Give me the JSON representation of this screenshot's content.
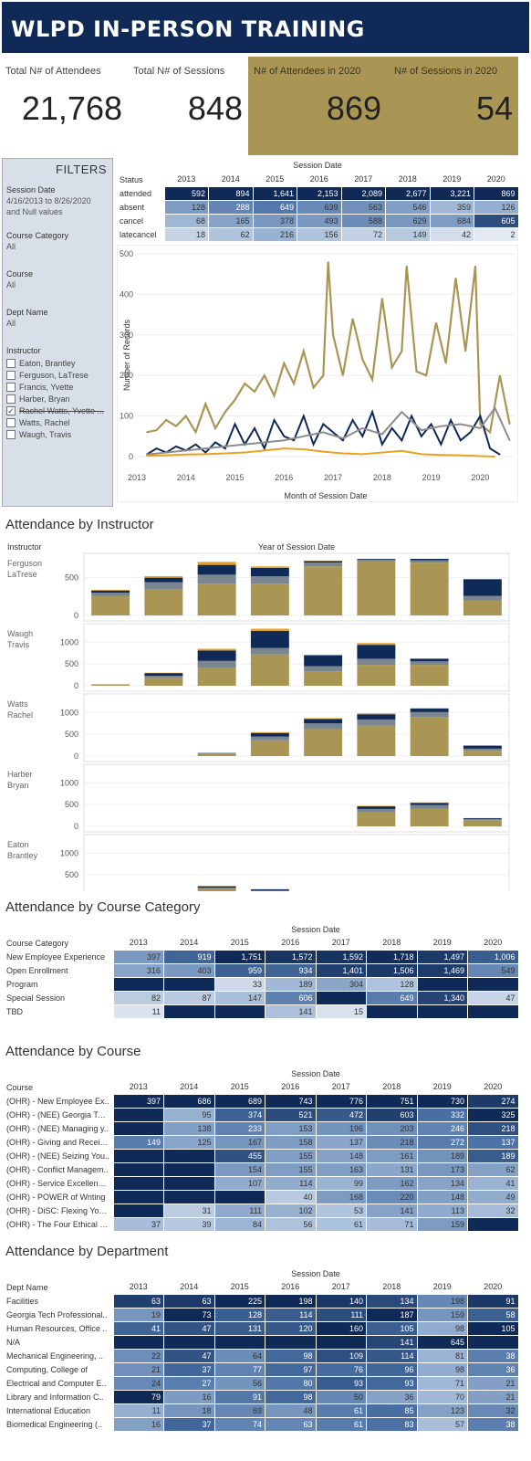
{
  "title": "WLPD IN-PERSON TRAINING",
  "kpis": {
    "total_attendees_label": "Total N# of Attendees",
    "total_attendees": "21,768",
    "total_sessions_label": "Total N# of Sessions",
    "total_sessions": "848",
    "attendees_2020_label": "N# of Attendees in 2020",
    "attendees_2020": "869",
    "sessions_2020_label": "N# of Sessions in 2020",
    "sessions_2020": "54"
  },
  "filters": {
    "title": "FILTERS",
    "session_date_label": "Session Date",
    "session_date_value": "4/16/2013 to 8/26/2020",
    "session_date_null": "and Null values",
    "course_category_label": "Course Category",
    "course_category_value": "All",
    "course_label": "Course",
    "course_value": "All",
    "dept_label": "Dept Name",
    "dept_value": "All",
    "instructor_label": "Instructor",
    "instructors": [
      {
        "name": "Eaton, Brantley",
        "checked": false
      },
      {
        "name": "Ferguson, LaTrese",
        "checked": false
      },
      {
        "name": "Francis, Yvette",
        "checked": false
      },
      {
        "name": "Harber, Bryan",
        "checked": false
      },
      {
        "name": "Rachel Watts, Yvette ...",
        "checked": true
      },
      {
        "name": "Watts, Rachel",
        "checked": false
      },
      {
        "name": "Waugh, Travis",
        "checked": false
      }
    ]
  },
  "colors": {
    "navy": "#0f2a56",
    "gold": "#aa9654",
    "grey": "#8c8c8c",
    "orange": "#e8a21c",
    "teal_grey": "#7a8592"
  },
  "status_table": {
    "header": "Session Date",
    "row_header": "Status",
    "years": [
      "2013",
      "2014",
      "2015",
      "2016",
      "2017",
      "2018",
      "2019",
      "2020"
    ],
    "rows": [
      {
        "label": "attended",
        "values": [
          "592",
          "894",
          "1,641",
          "2,153",
          "2,089",
          "2,677",
          "3,221",
          "869"
        ]
      },
      {
        "label": "absent",
        "values": [
          "128",
          "288",
          "649",
          "639",
          "563",
          "546",
          "359",
          "126"
        ]
      },
      {
        "label": "cancel",
        "values": [
          "68",
          "165",
          "378",
          "493",
          "588",
          "629",
          "684",
          "605"
        ]
      },
      {
        "label": "latecancel",
        "values": [
          "18",
          "62",
          "216",
          "156",
          "72",
          "149",
          "42",
          "2"
        ]
      }
    ]
  },
  "chart_data": [
    {
      "type": "line",
      "xlabel": "Month of Session Date",
      "ylabel": "Number of Records",
      "ylim": [
        0,
        500
      ],
      "yticks": [
        "0",
        "100",
        "200",
        "300",
        "400",
        "500"
      ],
      "xticks": [
        "2013",
        "2014",
        "2015",
        "2016",
        "2017",
        "2018",
        "2019",
        "2020"
      ],
      "x_range": [
        2013.0,
        2020.7
      ],
      "series": [
        {
          "color": "#aa9654",
          "x": [
            2013.2,
            2013.4,
            2013.6,
            2013.8,
            2014.0,
            2014.2,
            2014.4,
            2014.6,
            2014.8,
            2015.0,
            2015.2,
            2015.4,
            2015.6,
            2015.8,
            2016.0,
            2016.2,
            2016.4,
            2016.6,
            2016.8,
            2016.9,
            2017.0,
            2017.2,
            2017.4,
            2017.6,
            2017.8,
            2018.0,
            2018.2,
            2018.4,
            2018.5,
            2018.7,
            2018.9,
            2019.1,
            2019.3,
            2019.5,
            2019.7,
            2019.9,
            2020.0,
            2020.2,
            2020.4,
            2020.6
          ],
          "y": [
            60,
            65,
            90,
            75,
            100,
            60,
            130,
            70,
            110,
            140,
            180,
            160,
            200,
            150,
            230,
            180,
            260,
            170,
            200,
            480,
            300,
            200,
            340,
            240,
            190,
            390,
            220,
            260,
            470,
            210,
            200,
            330,
            230,
            440,
            260,
            470,
            80,
            60,
            200,
            80
          ]
        },
        {
          "color": "#0f2a56",
          "x": [
            2013.2,
            2013.4,
            2013.6,
            2013.8,
            2014.0,
            2014.2,
            2014.4,
            2014.6,
            2014.8,
            2015.0,
            2015.2,
            2015.4,
            2015.6,
            2015.8,
            2016.0,
            2016.2,
            2016.4,
            2016.6,
            2016.8,
            2017.0,
            2017.2,
            2017.4,
            2017.6,
            2017.8,
            2018.0,
            2018.2,
            2018.4,
            2018.6,
            2018.8,
            2019.0,
            2019.2,
            2019.4,
            2019.6,
            2019.8,
            2020.0,
            2020.2,
            2020.4
          ],
          "y": [
            5,
            20,
            10,
            25,
            15,
            30,
            10,
            35,
            20,
            80,
            30,
            70,
            20,
            90,
            50,
            40,
            100,
            30,
            80,
            60,
            40,
            90,
            50,
            110,
            30,
            70,
            40,
            100,
            50,
            80,
            30,
            90,
            40,
            60,
            100,
            20,
            5
          ]
        },
        {
          "color": "#8c8c8c",
          "x": [
            2013.2,
            2013.6,
            2014.0,
            2014.4,
            2014.8,
            2015.2,
            2015.6,
            2016.0,
            2016.4,
            2016.8,
            2017.2,
            2017.6,
            2018.0,
            2018.4,
            2018.8,
            2019.2,
            2019.6,
            2020.0,
            2020.3,
            2020.6
          ],
          "y": [
            5,
            10,
            15,
            20,
            25,
            30,
            35,
            40,
            50,
            60,
            45,
            70,
            55,
            110,
            65,
            75,
            80,
            70,
            120,
            40
          ]
        },
        {
          "color": "#e8a21c",
          "x": [
            2013.2,
            2013.6,
            2014.0,
            2014.4,
            2014.8,
            2015.2,
            2015.6,
            2016.0,
            2016.4,
            2016.8,
            2017.2,
            2017.6,
            2018.0,
            2018.4,
            2018.8,
            2019.2,
            2019.6,
            2020.0,
            2020.3
          ],
          "y": [
            2,
            3,
            5,
            6,
            8,
            10,
            15,
            20,
            18,
            12,
            8,
            6,
            10,
            14,
            6,
            4,
            3,
            1,
            0
          ]
        }
      ]
    },
    {
      "type": "bar",
      "title": "Attendance by Instructor",
      "row_header": "Instructor",
      "col_header": "Year of Session Date",
      "categories": [
        "2013",
        "2014",
        "2015",
        "2016",
        "2017",
        "2018",
        "2019",
        "2020"
      ],
      "panels": [
        {
          "name": "Ferguson LaTrese",
          "ymax": 750,
          "yticks": [
            "0",
            "500"
          ],
          "stacks": [
            [
              260,
              40,
              30,
              10
            ],
            [
              350,
              90,
              60,
              20
            ],
            [
              420,
              120,
              130,
              40
            ],
            [
              420,
              100,
              110,
              20
            ],
            [
              650,
              50,
              20,
              5
            ],
            [
              720,
              20,
              10,
              0
            ],
            [
              700,
              30,
              20,
              0
            ],
            [
              200,
              60,
              220,
              0
            ]
          ]
        },
        {
          "name": "Waugh Travis",
          "ymax": 1300,
          "yticks": [
            "0",
            "500",
            "1000"
          ],
          "stacks": [
            [
              20,
              5,
              5,
              0
            ],
            [
              180,
              50,
              60,
              10
            ],
            [
              420,
              150,
              240,
              40
            ],
            [
              720,
              150,
              390,
              50
            ],
            [
              330,
              120,
              250,
              10
            ],
            [
              480,
              140,
              320,
              40
            ],
            [
              480,
              80,
              60,
              5
            ],
            [
              0,
              0,
              0,
              0
            ]
          ]
        },
        {
          "name": "Watts Rachel",
          "ymax": 1300,
          "yticks": [
            "0",
            "500",
            "1000"
          ],
          "stacks": [
            [
              0,
              0,
              0,
              0
            ],
            [
              0,
              0,
              0,
              0
            ],
            [
              50,
              10,
              10,
              0
            ],
            [
              360,
              90,
              80,
              20
            ],
            [
              620,
              130,
              100,
              20
            ],
            [
              700,
              140,
              120,
              20
            ],
            [
              900,
              110,
              80,
              10
            ],
            [
              120,
              50,
              70,
              0
            ]
          ]
        },
        {
          "name": "Harber Bryan",
          "ymax": 1300,
          "yticks": [
            "0",
            "500",
            "1000"
          ],
          "stacks": [
            [
              0,
              0,
              0,
              0
            ],
            [
              0,
              0,
              0,
              0
            ],
            [
              0,
              0,
              0,
              0
            ],
            [
              0,
              0,
              0,
              0
            ],
            [
              0,
              0,
              0,
              0
            ],
            [
              320,
              80,
              60,
              10
            ],
            [
              400,
              90,
              50,
              10
            ],
            [
              140,
              30,
              20,
              0
            ]
          ]
        },
        {
          "name": "Eaton Brantley",
          "ymax": 1300,
          "yticks": [
            "0",
            "500",
            "1000"
          ],
          "stacks": [
            [
              0,
              0,
              0,
              0
            ],
            [
              0,
              0,
              0,
              0
            ],
            [
              170,
              40,
              30,
              5
            ],
            [
              110,
              30,
              30,
              0
            ],
            [
              5,
              5,
              0,
              0
            ],
            [
              0,
              0,
              0,
              0
            ],
            [
              0,
              0,
              0,
              0
            ],
            [
              0,
              0,
              0,
              0
            ]
          ]
        }
      ]
    }
  ],
  "course_category": {
    "title": "Attendance by Course Category",
    "header": "Session Date",
    "row_header": "Course Category",
    "years": [
      "2013",
      "2014",
      "2015",
      "2016",
      "2017",
      "2018",
      "2019",
      "2020"
    ],
    "rows": [
      {
        "label": "New Employee Experience",
        "values": [
          "397",
          "919",
          "1,751",
          "1,572",
          "1,592",
          "1,718",
          "1,497",
          "1,006"
        ]
      },
      {
        "label": "Open Enrollment",
        "values": [
          "316",
          "403",
          "959",
          "934",
          "1,401",
          "1,506",
          "1,469",
          "549"
        ]
      },
      {
        "label": "Program",
        "values": [
          "",
          "",
          "33",
          "189",
          "304",
          "128",
          "",
          ""
        ]
      },
      {
        "label": "Special Session",
        "values": [
          "82",
          "87",
          "147",
          "606",
          "",
          "649",
          "1,340",
          "47"
        ]
      },
      {
        "label": "TBD",
        "values": [
          "11",
          "",
          "",
          "141",
          "15",
          "",
          "",
          ""
        ]
      }
    ]
  },
  "course": {
    "title": "Attendance by Course",
    "header": "Session Date",
    "row_header": "Course",
    "years": [
      "2013",
      "2014",
      "2015",
      "2016",
      "2017",
      "2018",
      "2019",
      "2020"
    ],
    "rows": [
      {
        "label": "(OHR) - New Employee Ex..",
        "values": [
          "397",
          "686",
          "689",
          "743",
          "776",
          "751",
          "730",
          "274"
        ]
      },
      {
        "label": "(OHR) - (NEE) Georgia Tec..",
        "values": [
          "",
          "95",
          "374",
          "521",
          "472",
          "603",
          "332",
          "325"
        ]
      },
      {
        "label": "(OHR) - (NEE) Managing y..",
        "values": [
          "",
          "138",
          "233",
          "153",
          "196",
          "203",
          "246",
          "218"
        ]
      },
      {
        "label": "(OHR) - Giving and Receivi..",
        "values": [
          "149",
          "125",
          "167",
          "158",
          "137",
          "218",
          "272",
          "137"
        ]
      },
      {
        "label": "(OHR) - (NEE) Seizing You..",
        "values": [
          "",
          "",
          "455",
          "155",
          "148",
          "161",
          "189",
          "189"
        ]
      },
      {
        "label": "(OHR) - Conflict Managem..",
        "values": [
          "",
          "",
          "154",
          "155",
          "163",
          "131",
          "173",
          "62"
        ]
      },
      {
        "label": "(OHR) - Service Excellence..",
        "values": [
          "",
          "",
          "107",
          "114",
          "99",
          "162",
          "134",
          "41"
        ]
      },
      {
        "label": "(OHR) - POWER of Writing",
        "values": [
          "",
          "",
          "",
          "40",
          "168",
          "220",
          "148",
          "49"
        ]
      },
      {
        "label": "(OHR) - DiSC: Flexing Your..",
        "values": [
          "",
          "31",
          "111",
          "102",
          "53",
          "141",
          "113",
          "32"
        ]
      },
      {
        "label": "(OHR) - The Four Ethical C..",
        "values": [
          "37",
          "39",
          "84",
          "56",
          "61",
          "71",
          "159",
          ""
        ]
      }
    ]
  },
  "department": {
    "title": "Attendance by Department",
    "header": "Session Date",
    "row_header": "Dept Name",
    "years": [
      "2013",
      "2014",
      "2015",
      "2016",
      "2017",
      "2018",
      "2019",
      "2020"
    ],
    "rows": [
      {
        "label": "Facilities",
        "values": [
          "63",
          "63",
          "225",
          "198",
          "140",
          "134",
          "198",
          "91"
        ]
      },
      {
        "label": "Georgia Tech Professional..",
        "values": [
          "19",
          "73",
          "128",
          "114",
          "111",
          "187",
          "159",
          "58"
        ]
      },
      {
        "label": "Human Resources, Office ..",
        "values": [
          "41",
          "47",
          "131",
          "120",
          "160",
          "105",
          "98",
          "105"
        ]
      },
      {
        "label": "N/A",
        "values": [
          "",
          "",
          "",
          "",
          "",
          "141",
          "645",
          ""
        ]
      },
      {
        "label": "Mechanical Engineering, ..",
        "values": [
          "22",
          "47",
          "64",
          "98",
          "109",
          "114",
          "81",
          "38"
        ]
      },
      {
        "label": "Computing, College of",
        "values": [
          "21",
          "37",
          "77",
          "97",
          "76",
          "96",
          "98",
          "36"
        ]
      },
      {
        "label": "Electrical and Computer E..",
        "values": [
          "24",
          "27",
          "56",
          "80",
          "93",
          "93",
          "71",
          "21"
        ]
      },
      {
        "label": "Library and Information C..",
        "values": [
          "79",
          "16",
          "91",
          "98",
          "50",
          "36",
          "70",
          "21"
        ]
      },
      {
        "label": "International Education",
        "values": [
          "11",
          "18",
          "69",
          "48",
          "61",
          "85",
          "123",
          "32"
        ]
      },
      {
        "label": "Biomedical Engineering (..",
        "values": [
          "16",
          "37",
          "74",
          "63",
          "61",
          "83",
          "57",
          "38"
        ]
      }
    ]
  }
}
